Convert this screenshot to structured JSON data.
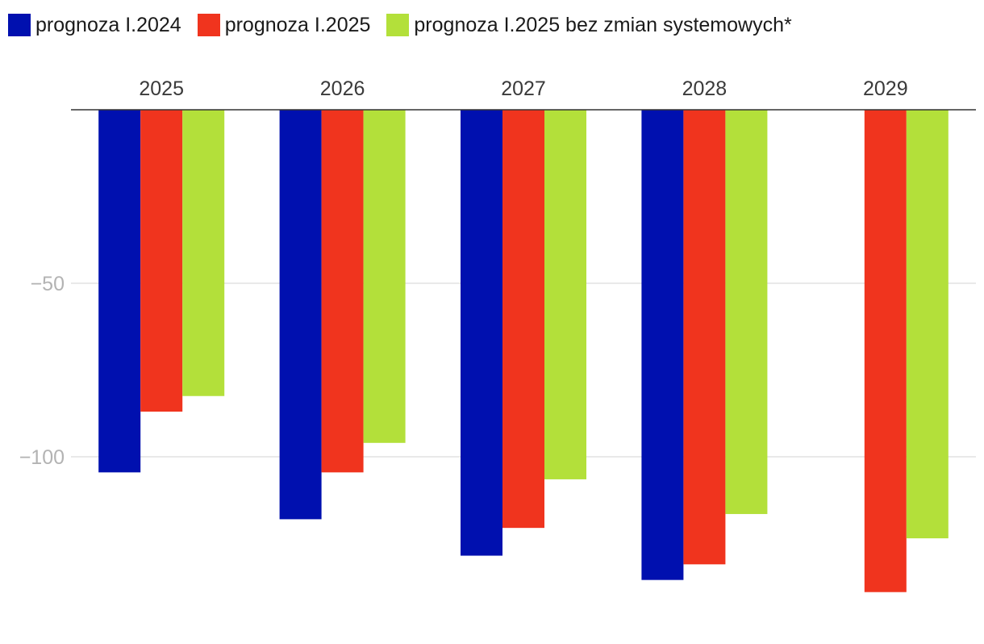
{
  "chart_data": {
    "type": "bar",
    "categories": [
      "2025",
      "2026",
      "2027",
      "2028",
      "2029"
    ],
    "series": [
      {
        "name": "prognoza I.2024",
        "color": "#0010AF",
        "values": [
          -104.5,
          -118,
          -128.5,
          -135.5,
          null
        ]
      },
      {
        "name": "prognoza I.2025",
        "color": "#F0341E",
        "values": [
          -87,
          -104.5,
          -120.5,
          -131,
          -139
        ]
      },
      {
        "name": "prognoza I.2025 bez zmian systemowych*",
        "color": "#B3E03A",
        "values": [
          -82.5,
          -96,
          -106.5,
          -116.5,
          -123.5
        ]
      }
    ],
    "yticks": [
      -50,
      -100
    ],
    "ytick_labels": [
      "−50",
      "−100"
    ],
    "ylim": [
      -150,
      0
    ],
    "grid": true,
    "legend_position": "top-left",
    "category_axis_position": "top",
    "title": "",
    "xlabel": "",
    "ylabel": ""
  }
}
